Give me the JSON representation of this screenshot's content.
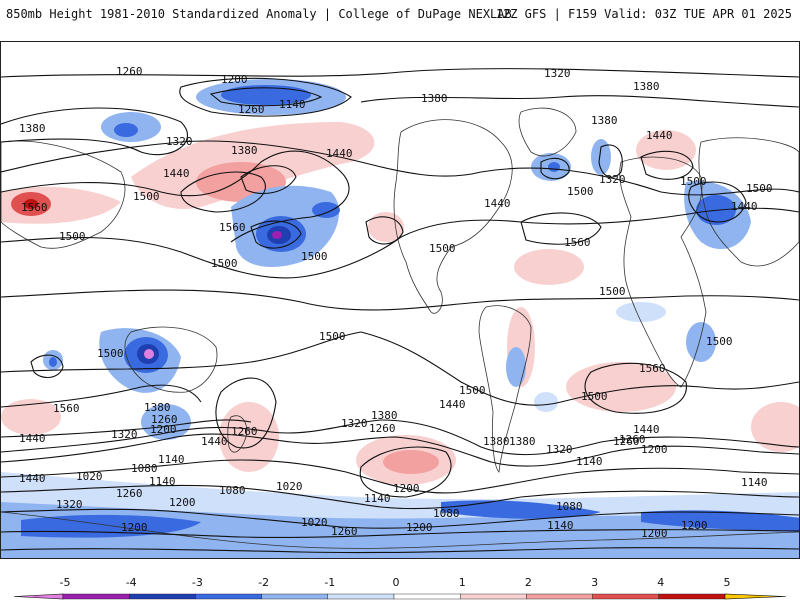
{
  "header": {
    "left_title": "850mb Height 1981-2010 Standardized Anomaly | College of DuPage NEXLAB",
    "right_title": "12Z GFS | F159 Valid: 03Z TUE APR 01 2025"
  },
  "colorbar": {
    "ticks": [
      "-5",
      "-4",
      "-3",
      "-2",
      "-1",
      "0",
      "1",
      "2",
      "3",
      "4",
      "5"
    ],
    "colors": [
      "#e080e0",
      "#9a20b0",
      "#1f3fb0",
      "#3a6ae0",
      "#8fb4f0",
      "#cfe0fa",
      "#ffffff",
      "#f9d0d0",
      "#f2a0a0",
      "#e05050",
      "#c01010",
      "#ff9a00",
      "#ffc800"
    ]
  },
  "contour_labels": [
    "1260",
    "1200",
    "1140",
    "1260",
    "1380",
    "1320",
    "1380",
    "1440",
    "1500",
    "1560",
    "1500",
    "1440",
    "1500",
    "1320",
    "1380",
    "1380",
    "1440",
    "1320",
    "1500",
    "1560",
    "1500",
    "1440",
    "1500",
    "1500",
    "1500",
    "1500",
    "1500",
    "1560",
    "1500",
    "1440",
    "1560",
    "1440",
    "1320",
    "1380",
    "1260",
    "1200",
    "1380",
    "1260",
    "1320",
    "1260",
    "1380",
    "1500",
    "1440",
    "1380",
    "1320",
    "1260",
    "1200",
    "1140",
    "1200",
    "1440",
    "1140",
    "1080",
    "1020",
    "1200",
    "1140",
    "1080",
    "1020",
    "1140",
    "1080",
    "1200",
    "1260",
    "1200",
    "1020",
    "1260",
    "1200",
    "1080",
    "1140",
    "1200",
    "1140",
    "1320",
    "1440",
    "1260",
    "1500",
    "1560",
    "1500",
    "1440",
    "1380"
  ]
}
